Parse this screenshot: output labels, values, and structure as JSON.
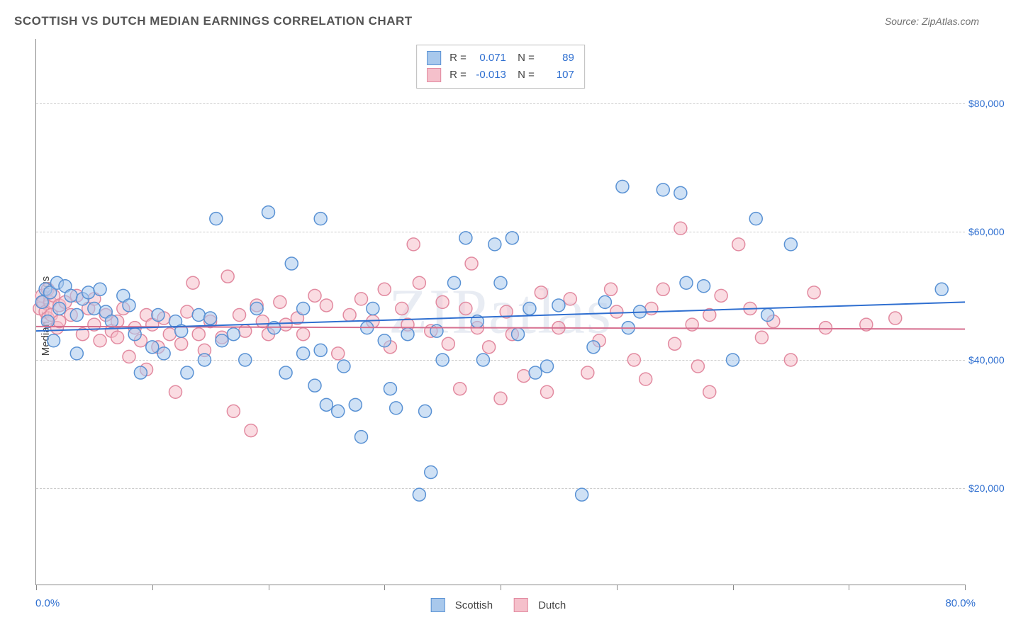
{
  "title": "SCOTTISH VS DUTCH MEDIAN EARNINGS CORRELATION CHART",
  "source_label": "Source: ZipAtlas.com",
  "watermark": "ZIPatlas",
  "ylabel": "Median Earnings",
  "xaxis": {
    "min_label": "0.0%",
    "max_label": "80.0%",
    "min": 0,
    "max": 80,
    "tick_positions": [
      0,
      10,
      20,
      30,
      40,
      50,
      60,
      70,
      80
    ]
  },
  "yaxis": {
    "min": 5000,
    "max": 90000,
    "ticks": [
      20000,
      40000,
      60000,
      80000
    ],
    "tick_labels": [
      "$20,000",
      "$40,000",
      "$60,000",
      "$80,000"
    ]
  },
  "series": [
    {
      "name": "Scottish",
      "fill": "#a8c8ec",
      "stroke": "#5a92d4",
      "fill_opacity": 0.55,
      "line_color": "#2f6fd0",
      "R": "0.071",
      "N": "89",
      "regression": {
        "x1": 0,
        "y1": 44500,
        "x2": 80,
        "y2": 49000
      },
      "points": [
        [
          0.5,
          49000
        ],
        [
          0.8,
          51000
        ],
        [
          1.0,
          46000
        ],
        [
          1.2,
          50500
        ],
        [
          1.5,
          43000
        ],
        [
          1.8,
          52000
        ],
        [
          2.0,
          48000
        ],
        [
          2.5,
          51500
        ],
        [
          3.0,
          50000
        ],
        [
          3.5,
          47000
        ],
        [
          3.5,
          41000
        ],
        [
          4.0,
          49500
        ],
        [
          4.5,
          50500
        ],
        [
          5.0,
          48000
        ],
        [
          5.5,
          51000
        ],
        [
          6.0,
          47500
        ],
        [
          6.5,
          46000
        ],
        [
          7.5,
          50000
        ],
        [
          8.0,
          48500
        ],
        [
          8.5,
          44000
        ],
        [
          9.0,
          38000
        ],
        [
          10.0,
          42000
        ],
        [
          10.5,
          47000
        ],
        [
          11.0,
          41000
        ],
        [
          12.0,
          46000
        ],
        [
          12.5,
          44500
        ],
        [
          13.0,
          38000
        ],
        [
          14.0,
          47000
        ],
        [
          14.5,
          40000
        ],
        [
          15.0,
          46500
        ],
        [
          15.5,
          62000
        ],
        [
          16.0,
          43000
        ],
        [
          17.0,
          44000
        ],
        [
          18.0,
          40000
        ],
        [
          19.0,
          48000
        ],
        [
          20.0,
          63000
        ],
        [
          20.5,
          45000
        ],
        [
          21.5,
          38000
        ],
        [
          22.0,
          55000
        ],
        [
          23.0,
          48000
        ],
        [
          23.0,
          41000
        ],
        [
          24.0,
          36000
        ],
        [
          24.5,
          62000
        ],
        [
          24.5,
          41500
        ],
        [
          25.0,
          33000
        ],
        [
          26.0,
          32000
        ],
        [
          26.5,
          39000
        ],
        [
          27.5,
          33000
        ],
        [
          28.0,
          28000
        ],
        [
          28.5,
          45000
        ],
        [
          29.0,
          48000
        ],
        [
          30.0,
          43000
        ],
        [
          30.5,
          35500
        ],
        [
          31.0,
          32500
        ],
        [
          32.0,
          44000
        ],
        [
          33.0,
          19000
        ],
        [
          33.5,
          32000
        ],
        [
          34.0,
          22500
        ],
        [
          34.5,
          44500
        ],
        [
          35.0,
          40000
        ],
        [
          36.0,
          52000
        ],
        [
          37.0,
          59000
        ],
        [
          38.0,
          46000
        ],
        [
          38.5,
          40000
        ],
        [
          39.5,
          58000
        ],
        [
          40.0,
          52000
        ],
        [
          41.0,
          59000
        ],
        [
          41.5,
          44000
        ],
        [
          42.5,
          48000
        ],
        [
          43.0,
          38000
        ],
        [
          44.0,
          39000
        ],
        [
          45.0,
          48500
        ],
        [
          47.0,
          19000
        ],
        [
          48.0,
          42000
        ],
        [
          49.0,
          49000
        ],
        [
          50.5,
          67000
        ],
        [
          51.0,
          45000
        ],
        [
          52.0,
          47500
        ],
        [
          54.0,
          66500
        ],
        [
          55.5,
          66000
        ],
        [
          56.0,
          52000
        ],
        [
          57.5,
          51500
        ],
        [
          60.0,
          40000
        ],
        [
          62.0,
          62000
        ],
        [
          63.0,
          47000
        ],
        [
          65.0,
          58000
        ],
        [
          78.0,
          51000
        ]
      ]
    },
    {
      "name": "Dutch",
      "fill": "#f5c0cb",
      "stroke": "#e28aa0",
      "fill_opacity": 0.55,
      "line_color": "#d66f8f",
      "R": "-0.013",
      "N": "107",
      "regression": {
        "x1": 0,
        "y1": 45200,
        "x2": 80,
        "y2": 44800
      },
      "points": [
        [
          0.3,
          48000
        ],
        [
          0.5,
          50000
        ],
        [
          0.6,
          49000
        ],
        [
          0.8,
          47500
        ],
        [
          1.0,
          51000
        ],
        [
          1.0,
          46500
        ],
        [
          1.2,
          49000
        ],
        [
          1.3,
          47000
        ],
        [
          1.5,
          50000
        ],
        [
          1.8,
          45000
        ],
        [
          2.0,
          48500
        ],
        [
          2.0,
          46000
        ],
        [
          2.5,
          49000
        ],
        [
          3.0,
          47000
        ],
        [
          3.5,
          50000
        ],
        [
          4.0,
          44000
        ],
        [
          4.5,
          48000
        ],
        [
          5.0,
          45500
        ],
        [
          5.0,
          49500
        ],
        [
          5.5,
          43000
        ],
        [
          6.0,
          47000
        ],
        [
          6.5,
          44500
        ],
        [
          7.0,
          46000
        ],
        [
          7.0,
          43500
        ],
        [
          7.5,
          48000
        ],
        [
          8.0,
          40500
        ],
        [
          8.5,
          45000
        ],
        [
          9.0,
          43000
        ],
        [
          9.5,
          47000
        ],
        [
          9.5,
          38500
        ],
        [
          10.0,
          45500
        ],
        [
          10.5,
          42000
        ],
        [
          11.0,
          46500
        ],
        [
          11.5,
          44000
        ],
        [
          12.0,
          35000
        ],
        [
          12.5,
          42500
        ],
        [
          13.0,
          47500
        ],
        [
          13.5,
          52000
        ],
        [
          14.0,
          44000
        ],
        [
          14.5,
          41500
        ],
        [
          15.0,
          46000
        ],
        [
          16.0,
          43500
        ],
        [
          16.5,
          53000
        ],
        [
          17.0,
          32000
        ],
        [
          17.5,
          47000
        ],
        [
          18.0,
          44500
        ],
        [
          18.5,
          29000
        ],
        [
          19.0,
          48500
        ],
        [
          19.5,
          46000
        ],
        [
          20.0,
          44000
        ],
        [
          21.0,
          49000
        ],
        [
          21.5,
          45500
        ],
        [
          22.5,
          46500
        ],
        [
          23.0,
          44000
        ],
        [
          24.0,
          50000
        ],
        [
          25.0,
          48500
        ],
        [
          26.0,
          41000
        ],
        [
          27.0,
          47000
        ],
        [
          28.0,
          49500
        ],
        [
          29.0,
          46000
        ],
        [
          30.0,
          51000
        ],
        [
          30.5,
          42000
        ],
        [
          31.5,
          48000
        ],
        [
          32.0,
          45500
        ],
        [
          32.5,
          58000
        ],
        [
          33.0,
          52000
        ],
        [
          34.0,
          44500
        ],
        [
          35.0,
          49000
        ],
        [
          35.5,
          42500
        ],
        [
          36.5,
          35500
        ],
        [
          37.0,
          48000
        ],
        [
          37.5,
          55000
        ],
        [
          38.0,
          45000
        ],
        [
          39.0,
          42000
        ],
        [
          40.0,
          34000
        ],
        [
          40.5,
          47500
        ],
        [
          41.0,
          44000
        ],
        [
          42.0,
          37500
        ],
        [
          43.5,
          50500
        ],
        [
          44.0,
          35000
        ],
        [
          45.0,
          45000
        ],
        [
          46.0,
          49500
        ],
        [
          47.5,
          38000
        ],
        [
          48.5,
          43000
        ],
        [
          49.5,
          51000
        ],
        [
          50.0,
          47500
        ],
        [
          51.5,
          40000
        ],
        [
          52.5,
          37000
        ],
        [
          53.0,
          48000
        ],
        [
          54.0,
          51000
        ],
        [
          55.0,
          42500
        ],
        [
          55.5,
          60500
        ],
        [
          56.5,
          45500
        ],
        [
          57.0,
          39000
        ],
        [
          58.0,
          47000
        ],
        [
          58.0,
          35000
        ],
        [
          59.0,
          50000
        ],
        [
          60.5,
          58000
        ],
        [
          61.5,
          48000
        ],
        [
          62.5,
          43500
        ],
        [
          63.5,
          46000
        ],
        [
          65.0,
          40000
        ],
        [
          67.0,
          50500
        ],
        [
          68.0,
          45000
        ],
        [
          71.5,
          45500
        ],
        [
          74.0,
          46500
        ]
      ]
    }
  ],
  "legend": {
    "items": [
      "Scottish",
      "Dutch"
    ]
  },
  "styling": {
    "background": "#ffffff",
    "grid_color": "#cccccc",
    "axis_color": "#888888",
    "title_color": "#555555",
    "tick_label_color": "#2f6fd0",
    "marker_radius": 9,
    "marker_stroke_width": 1.5,
    "line_width": 2,
    "title_fontsize": 17,
    "label_fontsize": 15,
    "tick_fontsize": 14
  }
}
